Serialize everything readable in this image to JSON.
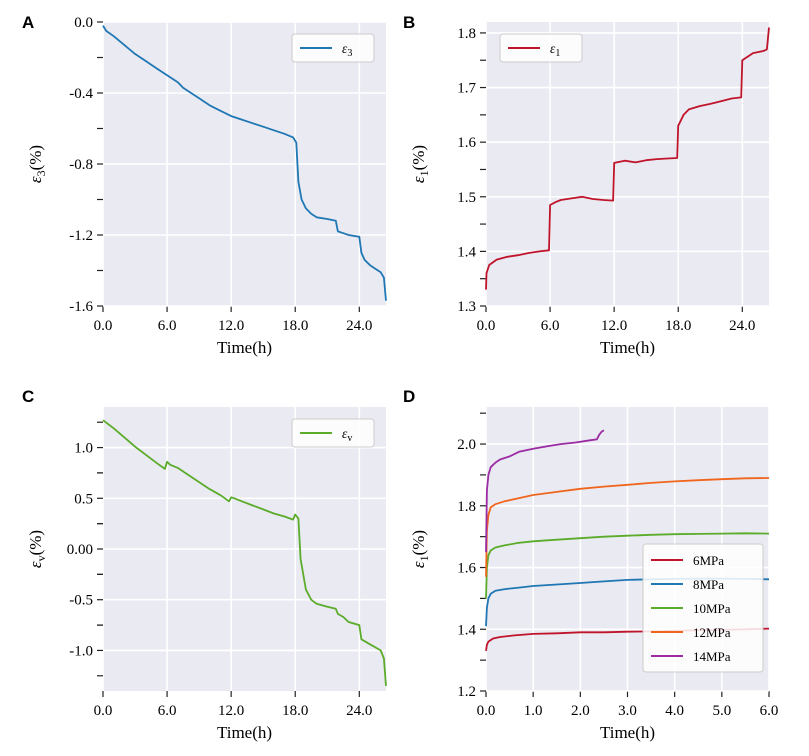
{
  "chart_data": [
    {
      "panel": "A",
      "type": "line",
      "xlabel": "Time(h)",
      "ylabel": "ε3(%)",
      "ylabel_main": "ε",
      "ylabel_sub": "3",
      "ylabel_suffix": "(%)",
      "xlim": [
        0,
        26.5
      ],
      "ylim": [
        -1.6,
        0.0
      ],
      "xticks": [
        "0.0",
        "6.0",
        "12.0",
        "18.0",
        "24.0"
      ],
      "yticks": [
        "0.0",
        "-0.4",
        "-0.8",
        "-1.2",
        "-1.6"
      ],
      "legend_loc": "top-right",
      "series": [
        {
          "name": "ε3",
          "name_main": "ε",
          "name_sub": "3",
          "color": "#1f77b4",
          "x": [
            0,
            0.3,
            1,
            2,
            3,
            4,
            5,
            6,
            7,
            7.5,
            8,
            9,
            10,
            11,
            12,
            13,
            14,
            15,
            16,
            17,
            17.8,
            18.1,
            18.3,
            18.6,
            19,
            19.5,
            20,
            21,
            21.8,
            22,
            22.5,
            23,
            24,
            24.2,
            24.5,
            25,
            25.5,
            26,
            26.3,
            26.5
          ],
          "y": [
            -0.02,
            -0.05,
            -0.08,
            -0.13,
            -0.18,
            -0.22,
            -0.26,
            -0.3,
            -0.34,
            -0.37,
            -0.39,
            -0.43,
            -0.47,
            -0.5,
            -0.53,
            -0.55,
            -0.57,
            -0.59,
            -0.61,
            -0.63,
            -0.65,
            -0.68,
            -0.9,
            -1.0,
            -1.05,
            -1.08,
            -1.1,
            -1.11,
            -1.12,
            -1.18,
            -1.19,
            -1.2,
            -1.21,
            -1.3,
            -1.34,
            -1.37,
            -1.39,
            -1.41,
            -1.44,
            -1.57
          ]
        }
      ]
    },
    {
      "panel": "B",
      "type": "line",
      "xlabel": "Time(h)",
      "ylabel": "ε1(%)",
      "ylabel_main": "ε",
      "ylabel_sub": "1",
      "ylabel_suffix": "(%)",
      "xlim": [
        0,
        26.5
      ],
      "ylim": [
        1.3,
        1.82
      ],
      "xticks": [
        "0.0",
        "6.0",
        "12.0",
        "18.0",
        "24.0"
      ],
      "yticks": [
        "1.3",
        "1.4",
        "1.5",
        "1.6",
        "1.7",
        "1.8"
      ],
      "legend_loc": "top-left",
      "series": [
        {
          "name": "ε1",
          "name_main": "ε",
          "name_sub": "1",
          "color": "#c0142b",
          "x": [
            0,
            0.05,
            0.3,
            1,
            2,
            3,
            4,
            5,
            5.9,
            6.0,
            6.5,
            7,
            8,
            9,
            10,
            11,
            11.9,
            12.0,
            13,
            14,
            15,
            16,
            17,
            17.9,
            18.0,
            18.5,
            19,
            20,
            21,
            22,
            23,
            23.9,
            24.0,
            25,
            26,
            26.3,
            26.5
          ],
          "y": [
            1.33,
            1.36,
            1.375,
            1.385,
            1.39,
            1.393,
            1.397,
            1.4,
            1.402,
            1.485,
            1.49,
            1.494,
            1.497,
            1.5,
            1.496,
            1.494,
            1.493,
            1.562,
            1.566,
            1.563,
            1.567,
            1.569,
            1.57,
            1.571,
            1.63,
            1.65,
            1.66,
            1.666,
            1.67,
            1.675,
            1.68,
            1.682,
            1.75,
            1.763,
            1.767,
            1.77,
            1.81
          ]
        }
      ]
    },
    {
      "panel": "C",
      "type": "line",
      "xlabel": "Time(h)",
      "ylabel": "εv(%)",
      "ylabel_main": "ε",
      "ylabel_sub": "v",
      "ylabel_suffix": "(%)",
      "xlim": [
        0,
        26.5
      ],
      "ylim": [
        -1.4,
        1.4
      ],
      "xticks": [
        "0.0",
        "6.0",
        "12.0",
        "18.0",
        "24.0"
      ],
      "yticks": [
        "1.0",
        "0.5",
        "0.00",
        "-0.5",
        "-1.0"
      ],
      "ytick_values": [
        1.0,
        0.5,
        0.0,
        -0.5,
        -1.0
      ],
      "legend_loc": "top-right",
      "series": [
        {
          "name": "εv",
          "name_main": "ε",
          "name_sub": "v",
          "color": "#5aac2a",
          "x": [
            0,
            1,
            2,
            3,
            4,
            5,
            5.8,
            6.0,
            6.3,
            7,
            8,
            9,
            10,
            11,
            11.8,
            12.0,
            12.3,
            13,
            14,
            15,
            16,
            17,
            17.8,
            18.0,
            18.3,
            18.5,
            19,
            19.5,
            20,
            21,
            21.8,
            22,
            22.5,
            23,
            24,
            24.2,
            25,
            26,
            26.3,
            26.5
          ],
          "y": [
            1.27,
            1.19,
            1.1,
            1.01,
            0.93,
            0.85,
            0.79,
            0.86,
            0.83,
            0.8,
            0.73,
            0.66,
            0.59,
            0.53,
            0.47,
            0.51,
            0.5,
            0.47,
            0.43,
            0.39,
            0.35,
            0.32,
            0.29,
            0.34,
            0.3,
            -0.1,
            -0.4,
            -0.5,
            -0.54,
            -0.57,
            -0.59,
            -0.64,
            -0.67,
            -0.72,
            -0.75,
            -0.89,
            -0.94,
            -1.0,
            -1.08,
            -1.35
          ]
        }
      ]
    },
    {
      "panel": "D",
      "type": "line",
      "xlabel": "Time(h)",
      "ylabel": "ε1(%)",
      "ylabel_main": "ε",
      "ylabel_sub": "1",
      "ylabel_suffix": "(%)",
      "xlim": [
        0,
        6.0
      ],
      "ylim": [
        1.2,
        2.12
      ],
      "xticks": [
        "0.0",
        "1.0",
        "2.0",
        "3.0",
        "4.0",
        "5.0",
        "6.0"
      ],
      "yticks": [
        "1.2",
        "1.4",
        "1.6",
        "1.8",
        "2.0"
      ],
      "legend_loc": "lower-right",
      "series": [
        {
          "name": "6MPa",
          "color": "#c0142b",
          "x": [
            0,
            0.02,
            0.05,
            0.15,
            0.3,
            0.6,
            1,
            1.5,
            2,
            2.5,
            3,
            3.5,
            4,
            4.5,
            5,
            5.5,
            6.0
          ],
          "y": [
            1.33,
            1.35,
            1.36,
            1.37,
            1.375,
            1.38,
            1.385,
            1.387,
            1.39,
            1.39,
            1.392,
            1.393,
            1.395,
            1.397,
            1.398,
            1.4,
            1.402
          ]
        },
        {
          "name": "8MPa",
          "color": "#1f77b4",
          "x": [
            0,
            0.02,
            0.05,
            0.1,
            0.2,
            0.4,
            0.7,
            1,
            1.5,
            2,
            2.5,
            3,
            3.5,
            4,
            4.5,
            5,
            5.5,
            6.0
          ],
          "y": [
            1.41,
            1.47,
            1.5,
            1.515,
            1.525,
            1.53,
            1.535,
            1.54,
            1.545,
            1.55,
            1.555,
            1.56,
            1.562,
            1.563,
            1.564,
            1.564,
            1.563,
            1.562
          ]
        },
        {
          "name": "10MPa",
          "color": "#5aac2a",
          "x": [
            0,
            0.02,
            0.05,
            0.1,
            0.2,
            0.4,
            0.7,
            1,
            1.5,
            2,
            2.5,
            3,
            3.5,
            4,
            4.5,
            5,
            5.5,
            6.0
          ],
          "y": [
            1.5,
            1.6,
            1.64,
            1.655,
            1.665,
            1.672,
            1.68,
            1.685,
            1.69,
            1.695,
            1.7,
            1.703,
            1.706,
            1.708,
            1.709,
            1.71,
            1.711,
            1.71
          ]
        },
        {
          "name": "12MPa",
          "color": "#f0651c",
          "x": [
            0,
            0.02,
            0.05,
            0.1,
            0.2,
            0.4,
            0.7,
            1,
            1.5,
            2,
            2.5,
            3,
            3.5,
            4,
            4.5,
            5,
            5.5,
            6.0
          ],
          "y": [
            1.57,
            1.72,
            1.77,
            1.795,
            1.805,
            1.815,
            1.825,
            1.835,
            1.845,
            1.855,
            1.862,
            1.868,
            1.874,
            1.879,
            1.883,
            1.886,
            1.889,
            1.89
          ]
        },
        {
          "name": "14MPa",
          "color": "#9b2aa3",
          "x": [
            0,
            0.02,
            0.05,
            0.1,
            0.2,
            0.3,
            0.5,
            0.7,
            1.0,
            1.3,
            1.6,
            1.9,
            2.2,
            2.35,
            2.4,
            2.45,
            2.5
          ],
          "y": [
            1.65,
            1.85,
            1.9,
            1.925,
            1.94,
            1.95,
            1.96,
            1.975,
            1.985,
            1.993,
            2.0,
            2.005,
            2.012,
            2.015,
            2.03,
            2.04,
            2.045
          ]
        }
      ]
    }
  ]
}
